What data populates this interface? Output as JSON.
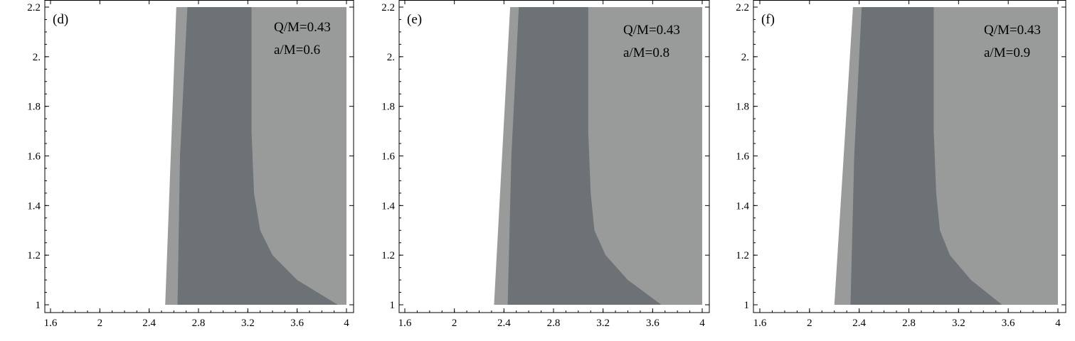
{
  "chart_data": [
    {
      "type": "area",
      "panel_label": "(d)",
      "annotations": [
        "Q/M=0.43",
        "a/M=0.6"
      ],
      "xlim": [
        1.55,
        4.05
      ],
      "ylim": [
        0.97,
        2.22
      ],
      "xticks": [
        1.6,
        2,
        2.4,
        2.8,
        3.2,
        3.6,
        4
      ],
      "xtick_labels": [
        "1.6",
        "2",
        "2.4",
        "2.8",
        "3.2",
        "3.6",
        "4"
      ],
      "yticks": [
        1,
        1.2,
        1.4,
        1.6,
        1.8,
        2.0,
        2.2
      ],
      "ytick_labels": [
        "1",
        "1.2",
        "1.4",
        "1.6",
        "1.8",
        "2.",
        "2.2"
      ],
      "regions": {
        "light_left_boundary": [
          [
            2.53,
            1.0
          ],
          [
            2.62,
            2.2
          ]
        ],
        "dark_left_boundary": [
          [
            2.63,
            1.0
          ],
          [
            2.65,
            1.6
          ],
          [
            2.71,
            2.2
          ]
        ],
        "dark_right_boundary": [
          [
            3.93,
            1.0
          ],
          [
            3.6,
            1.1
          ],
          [
            3.4,
            1.2
          ],
          [
            3.3,
            1.3
          ],
          [
            3.25,
            1.45
          ],
          [
            3.23,
            1.7
          ],
          [
            3.23,
            2.2
          ]
        ],
        "light_right": 4.0
      },
      "colors": {
        "light": "#999b9b",
        "dark": "#6c7275"
      }
    },
    {
      "type": "area",
      "panel_label": "(e)",
      "annotations": [
        "Q/M=0.43",
        "a/M=0.8"
      ],
      "xlim": [
        1.55,
        4.05
      ],
      "ylim": [
        0.97,
        2.22
      ],
      "xticks": [
        1.6,
        2,
        2.4,
        2.8,
        3.2,
        3.6,
        4
      ],
      "xtick_labels": [
        "1.6",
        "2",
        "2.4",
        "2.8",
        "3.2",
        "3.6",
        "4"
      ],
      "yticks": [
        1,
        1.2,
        1.4,
        1.6,
        1.8,
        2.0,
        2.2
      ],
      "ytick_labels": [
        "1",
        "1.2",
        "1.4",
        "1.6",
        "1.8",
        "2.",
        "2.2"
      ],
      "regions": {
        "light_left_boundary": [
          [
            2.32,
            1.0
          ],
          [
            2.45,
            2.2
          ]
        ],
        "dark_left_boundary": [
          [
            2.43,
            1.0
          ],
          [
            2.46,
            1.6
          ],
          [
            2.52,
            2.2
          ]
        ],
        "dark_right_boundary": [
          [
            3.67,
            1.0
          ],
          [
            3.4,
            1.1
          ],
          [
            3.22,
            1.2
          ],
          [
            3.13,
            1.3
          ],
          [
            3.1,
            1.45
          ],
          [
            3.08,
            1.7
          ],
          [
            3.08,
            2.2
          ]
        ],
        "light_right": 4.0
      },
      "colors": {
        "light": "#999b9b",
        "dark": "#6c7275"
      }
    },
    {
      "type": "area",
      "panel_label": "(f)",
      "annotations": [
        "Q/M=0.43",
        "a/M=0.9"
      ],
      "xlim": [
        1.55,
        4.05
      ],
      "ylim": [
        0.97,
        2.22
      ],
      "xticks": [
        1.6,
        2,
        2.4,
        2.8,
        3.2,
        3.6,
        4
      ],
      "xtick_labels": [
        "1.6",
        "2",
        "2.4",
        "2.8",
        "3.2",
        "3.6",
        "4"
      ],
      "yticks": [
        1,
        1.2,
        1.4,
        1.6,
        1.8,
        2.0,
        2.2
      ],
      "ytick_labels": [
        "1",
        "1.2",
        "1.4",
        "1.6",
        "1.8",
        "2.",
        "2.2"
      ],
      "regions": {
        "light_left_boundary": [
          [
            2.2,
            1.0
          ],
          [
            2.35,
            2.2
          ]
        ],
        "dark_left_boundary": [
          [
            2.33,
            1.0
          ],
          [
            2.36,
            1.6
          ],
          [
            2.42,
            2.2
          ]
        ],
        "dark_right_boundary": [
          [
            3.55,
            1.0
          ],
          [
            3.3,
            1.1
          ],
          [
            3.13,
            1.2
          ],
          [
            3.05,
            1.3
          ],
          [
            3.02,
            1.45
          ],
          [
            3.0,
            1.7
          ],
          [
            3.0,
            2.2
          ]
        ],
        "light_right": 4.0
      },
      "colors": {
        "light": "#999b9b",
        "dark": "#6c7275"
      }
    }
  ]
}
